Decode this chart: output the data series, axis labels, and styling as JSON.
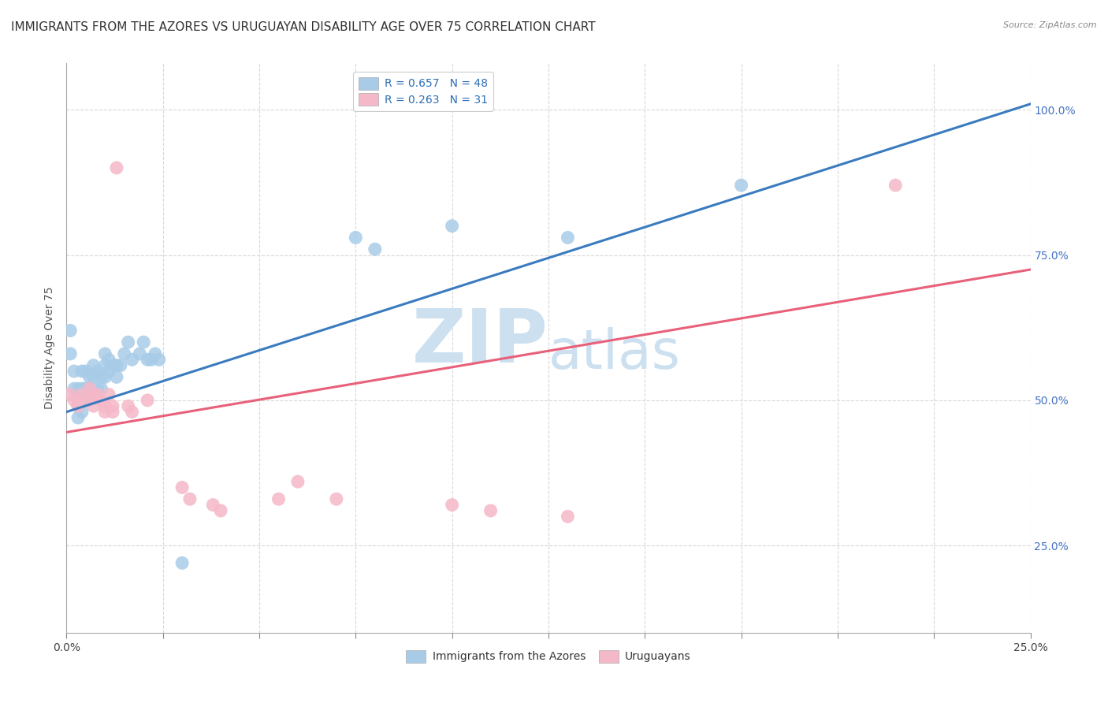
{
  "title": "IMMIGRANTS FROM THE AZORES VS URUGUAYAN DISABILITY AGE OVER 75 CORRELATION CHART",
  "source": "Source: ZipAtlas.com",
  "ylabel": "Disability Age Over 75",
  "xlim": [
    0.0,
    0.25
  ],
  "ylim": [
    0.1,
    1.08
  ],
  "xticks": [
    0.0,
    0.025,
    0.05,
    0.075,
    0.1,
    0.125,
    0.15,
    0.175,
    0.2,
    0.225,
    0.25
  ],
  "xtick_labels_show": [
    0.0,
    0.25
  ],
  "yticks_right": [
    0.25,
    0.5,
    0.75,
    1.0
  ],
  "yticklabels_right": [
    "25.0%",
    "50.0%",
    "75.0%",
    "100.0%"
  ],
  "legend_blue_label": "R = 0.657   N = 48",
  "legend_pink_label": "R = 0.263   N = 31",
  "legend_bottom_blue": "Immigrants from the Azores",
  "legend_bottom_pink": "Uruguayans",
  "blue_color": "#a8cce8",
  "pink_color": "#f5b8c8",
  "blue_line_color": "#3a7bbf",
  "pink_line_color": "#e8607a",
  "blue_x": [
    0.001,
    0.001,
    0.002,
    0.002,
    0.003,
    0.003,
    0.003,
    0.003,
    0.004,
    0.004,
    0.004,
    0.004,
    0.005,
    0.005,
    0.005,
    0.006,
    0.006,
    0.006,
    0.007,
    0.007,
    0.008,
    0.008,
    0.009,
    0.009,
    0.01,
    0.01,
    0.01,
    0.011,
    0.011,
    0.012,
    0.013,
    0.013,
    0.014,
    0.015,
    0.016,
    0.017,
    0.019,
    0.02,
    0.021,
    0.022,
    0.023,
    0.024,
    0.03,
    0.075,
    0.08,
    0.1,
    0.13,
    0.175
  ],
  "blue_y": [
    0.62,
    0.58,
    0.55,
    0.52,
    0.52,
    0.5,
    0.49,
    0.47,
    0.55,
    0.52,
    0.5,
    0.48,
    0.55,
    0.52,
    0.5,
    0.54,
    0.52,
    0.5,
    0.56,
    0.54,
    0.55,
    0.52,
    0.54,
    0.52,
    0.58,
    0.56,
    0.54,
    0.57,
    0.55,
    0.56,
    0.56,
    0.54,
    0.56,
    0.58,
    0.6,
    0.57,
    0.58,
    0.6,
    0.57,
    0.57,
    0.58,
    0.57,
    0.22,
    0.78,
    0.76,
    0.8,
    0.78,
    0.87
  ],
  "pink_x": [
    0.001,
    0.002,
    0.003,
    0.003,
    0.004,
    0.005,
    0.006,
    0.007,
    0.007,
    0.008,
    0.009,
    0.01,
    0.01,
    0.011,
    0.012,
    0.012,
    0.013,
    0.016,
    0.017,
    0.021,
    0.03,
    0.032,
    0.038,
    0.04,
    0.055,
    0.06,
    0.07,
    0.1,
    0.11,
    0.13,
    0.215
  ],
  "pink_y": [
    0.51,
    0.5,
    0.5,
    0.49,
    0.51,
    0.5,
    0.52,
    0.51,
    0.49,
    0.51,
    0.5,
    0.49,
    0.48,
    0.51,
    0.49,
    0.48,
    0.9,
    0.49,
    0.48,
    0.5,
    0.35,
    0.33,
    0.32,
    0.31,
    0.33,
    0.36,
    0.33,
    0.32,
    0.31,
    0.3,
    0.87
  ],
  "background_color": "#ffffff",
  "grid_color": "#d8d8d8",
  "watermark_zip": "ZIP",
  "watermark_atlas": "atlas",
  "watermark_color_zip": "#cce0f0",
  "watermark_color_atlas": "#cce0f0",
  "title_fontsize": 11,
  "axis_label_fontsize": 10,
  "tick_fontsize": 10,
  "legend_fontsize": 10,
  "blue_line_y0": 0.48,
  "blue_line_y1": 1.01,
  "pink_line_y0": 0.445,
  "pink_line_y1": 0.725
}
